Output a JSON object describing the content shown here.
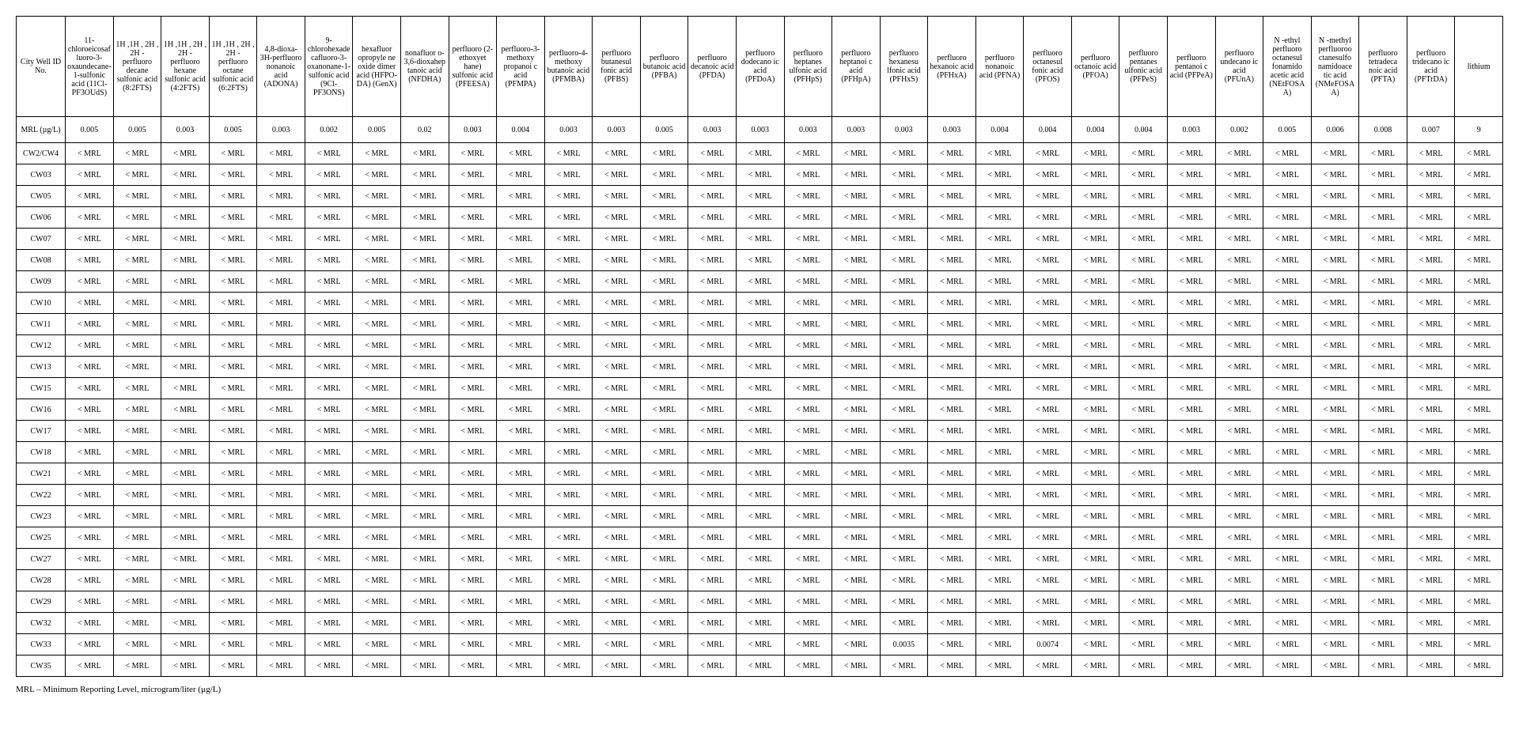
{
  "table": {
    "id_header": "City Well ID No.",
    "mrl_label": "MRL (µg/L)",
    "lt_mrl": "< MRL",
    "columns": [
      {
        "label": "11-chloroeicosafluoro-3-oxaundecane-1-sulfonic acid (11Cl-PF3OUdS)",
        "mrl": "0.005"
      },
      {
        "label": "1H ,1H , 2H , 2H - perfluoro decane sulfonic acid (8:2FTS)",
        "mrl": "0.005"
      },
      {
        "label": "1H ,1H , 2H , 2H - perfluoro hexane sulfonic acid (4:2FTS)",
        "mrl": "0.003"
      },
      {
        "label": "1H ,1H , 2H , 2H - perfluoro octane sulfonic acid (6:2FTS)",
        "mrl": "0.005"
      },
      {
        "label": "4,8-dioxa-3H-perfluoro nonanoic acid (ADONA)",
        "mrl": "0.003"
      },
      {
        "label": "9-chlorohexadecafluoro-3-oxanonane-1-sulfonic acid (9Cl-PF3ONS)",
        "mrl": "0.002"
      },
      {
        "label": "hexafluor opropyle ne oxide dimer acid (HFPO-DA) (GenX)",
        "mrl": "0.005"
      },
      {
        "label": "nonafluor o-3,6-dioxahep tanoic acid (NFDHA)",
        "mrl": "0.02"
      },
      {
        "label": "perfluoro (2-ethoxyet hane) sulfonic acid (PFEESA)",
        "mrl": "0.003"
      },
      {
        "label": "perfluoro-3-methoxy propanoi c acid (PFMPA)",
        "mrl": "0.004"
      },
      {
        "label": "perfluoro-4-methoxy butanoic acid (PFMBA)",
        "mrl": "0.003"
      },
      {
        "label": "perfluoro butanesul fonic acid (PFBS)",
        "mrl": "0.003"
      },
      {
        "label": "perfluoro butanoic acid (PFBA)",
        "mrl": "0.005"
      },
      {
        "label": "perfluoro decanoic acid (PFDA)",
        "mrl": "0.003"
      },
      {
        "label": "perfluoro dodecano ic acid (PFDoA)",
        "mrl": "0.003"
      },
      {
        "label": "perfluoro heptanes ulfonic acid (PFHpS)",
        "mrl": "0.003"
      },
      {
        "label": "perfluoro heptanoi c acid (PFHpA)",
        "mrl": "0.003"
      },
      {
        "label": "perfluoro hexanesu lfonic acid (PFHxS)",
        "mrl": "0.003"
      },
      {
        "label": "perfluoro hexanoic acid (PFHxA)",
        "mrl": "0.003"
      },
      {
        "label": "perfluoro nonanoic acid (PFNA)",
        "mrl": "0.004"
      },
      {
        "label": "perfluoro octanesul fonic acid (PFOS)",
        "mrl": "0.004"
      },
      {
        "label": "perfluoro octanoic acid (PFOA)",
        "mrl": "0.004"
      },
      {
        "label": "perfluoro pentanes ulfonic acid (PFPeS)",
        "mrl": "0.004"
      },
      {
        "label": "perfluoro pentanoi c acid (PFPeA)",
        "mrl": "0.003"
      },
      {
        "label": "perfluoro undecano ic acid (PFUnA)",
        "mrl": "0.002"
      },
      {
        "label": "N -ethyl perfluoro octanesul fonamido acetic acid (NEtFOSA A)",
        "mrl": "0.005"
      },
      {
        "label": "N -methyl perfluoroo ctanesulfo namidoace tic acid (NMeFOSA A)",
        "mrl": "0.006"
      },
      {
        "label": "perfluoro tetradeca noic acid (PFTA)",
        "mrl": "0.008"
      },
      {
        "label": "perfluoro tridecano ic acid (PFTrDA)",
        "mrl": "0.007"
      },
      {
        "label": "lithium",
        "mrl": "9"
      }
    ],
    "rows": [
      {
        "id": "CW2/CW4",
        "overrides": {}
      },
      {
        "id": "CW03",
        "overrides": {}
      },
      {
        "id": "CW05",
        "overrides": {}
      },
      {
        "id": "CW06",
        "overrides": {}
      },
      {
        "id": "CW07",
        "overrides": {}
      },
      {
        "id": "CW08",
        "overrides": {}
      },
      {
        "id": "CW09",
        "overrides": {}
      },
      {
        "id": "CW10",
        "overrides": {}
      },
      {
        "id": "CW11",
        "overrides": {}
      },
      {
        "id": "CW12",
        "overrides": {}
      },
      {
        "id": "CW13",
        "overrides": {}
      },
      {
        "id": "CW15",
        "overrides": {}
      },
      {
        "id": "CW16",
        "overrides": {}
      },
      {
        "id": "CW17",
        "overrides": {}
      },
      {
        "id": "CW18",
        "overrides": {}
      },
      {
        "id": "CW21",
        "overrides": {}
      },
      {
        "id": "CW22",
        "overrides": {}
      },
      {
        "id": "CW23",
        "overrides": {}
      },
      {
        "id": "CW25",
        "overrides": {}
      },
      {
        "id": "CW27",
        "overrides": {}
      },
      {
        "id": "CW28",
        "overrides": {}
      },
      {
        "id": "CW29",
        "overrides": {}
      },
      {
        "id": "CW32",
        "overrides": {}
      },
      {
        "id": "CW33",
        "overrides": {
          "17": "0.0035",
          "20": "0.0074"
        }
      },
      {
        "id": "CW35",
        "overrides": {}
      }
    ]
  },
  "footnote": "MRL – Minimum Reporting Level, microgram/liter (µg/L)"
}
